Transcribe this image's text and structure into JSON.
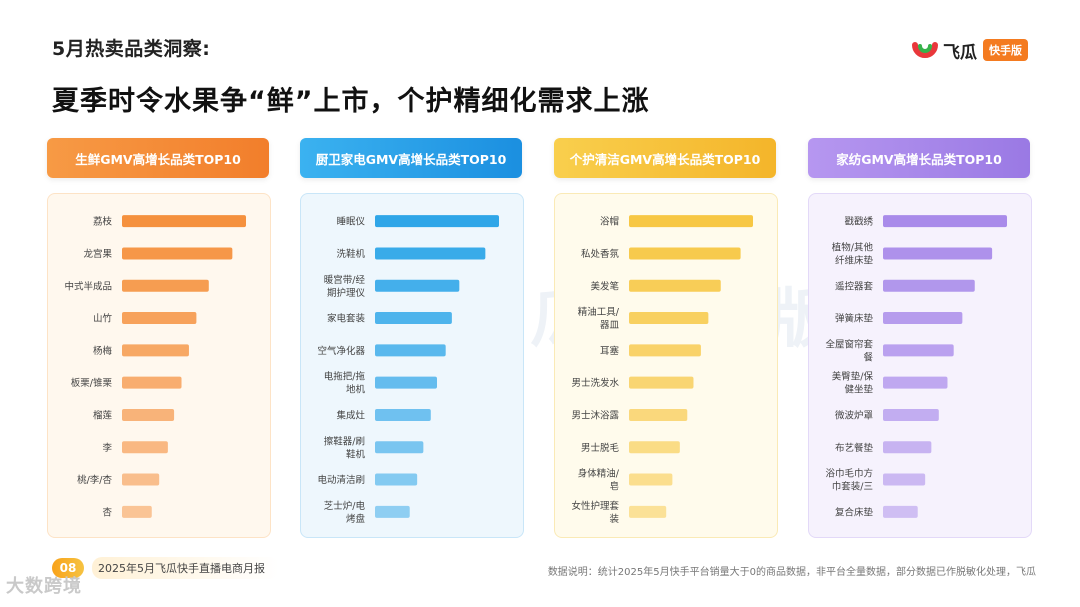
{
  "header": {
    "subtitle": "5月热卖品类洞察:",
    "title": "夏季时令水果争“鲜”上市，个护精细化需求上涨"
  },
  "brand": {
    "name": "飞瓜",
    "tag": "快手版",
    "accent": "#f47b20"
  },
  "watermark": "飞瓜 快手版",
  "footer": {
    "page_number": "08",
    "report_name": "2025年5月飞瓜快手直播电商月报",
    "note": "数据说明：统计2025年5月快手平台销量大于0的商品数据，非平台全量数据，部分数据已作脱敏化处理，飞瓜"
  },
  "corner_mark": "大数跨境",
  "chart_data": [
    {
      "type": "bar",
      "title": "生鲜GMV高增长品类TOP10",
      "color": "#f5913e",
      "header_gradient": [
        "#f79a45",
        "#f27e2b"
      ],
      "body_bg": "#fff8ee",
      "body_border": "#fde3c6",
      "categories": [
        "荔枝",
        "龙宫果",
        "中式半成品",
        "山竹",
        "杨梅",
        "板栗/锥栗",
        "榴莲",
        "李",
        "桃/李/杏",
        "杏"
      ],
      "values": [
        100,
        89,
        70,
        60,
        54,
        48,
        42,
        37,
        30,
        24
      ],
      "xlim": [
        0,
        100
      ]
    },
    {
      "type": "bar",
      "title": "厨卫家电GMV高增长品类TOP10",
      "color": "#2fa6e8",
      "header_gradient": [
        "#3bb2f0",
        "#1b8fe0"
      ],
      "body_bg": "#eef7fd",
      "body_border": "#c9e6f8",
      "categories": [
        "睡眠仪",
        "洗鞋机",
        "暖宫带/经期护理仪",
        "家电套装",
        "空气净化器",
        "电拖把/拖地机",
        "集成灶",
        "擦鞋器/刷鞋机",
        "电动清洁刷",
        "芝士炉/电烤盘"
      ],
      "values": [
        100,
        89,
        68,
        62,
        57,
        50,
        45,
        39,
        34,
        28
      ],
      "xlim": [
        0,
        100
      ]
    },
    {
      "type": "bar",
      "title": "个护清洁GMV高增长品类TOP10",
      "color": "#f7c744",
      "header_gradient": [
        "#f9cf4d",
        "#f4b52a"
      ],
      "body_bg": "#fffbec",
      "body_border": "#faeab6",
      "categories": [
        "浴帽",
        "私处香氛",
        "美发笔",
        "精油工具/器皿",
        "耳塞",
        "男士洗发水",
        "男士沐浴露",
        "男士脱毛",
        "身体精油/皂",
        "女性护理套装"
      ],
      "values": [
        100,
        90,
        74,
        64,
        58,
        52,
        47,
        41,
        35,
        30
      ],
      "xlim": [
        0,
        100
      ]
    },
    {
      "type": "bar",
      "title": "家纺GMV高增长品类TOP10",
      "color": "#a98bea",
      "header_gradient": [
        "#b697f0",
        "#9a79e4"
      ],
      "body_bg": "#f6f2fd",
      "body_border": "#e3d9f8",
      "categories": [
        "戳戳绣",
        "植物/其他纤维床垫",
        "遥控器套",
        "弹簧床垫",
        "全屋窗帘套餐",
        "美臀垫/保健坐垫",
        "微波炉罩",
        "布艺餐垫",
        "浴巾毛巾方巾套装/三件套",
        "复合床垫"
      ],
      "values": [
        100,
        88,
        74,
        64,
        57,
        52,
        45,
        39,
        34,
        28
      ],
      "xlim": [
        0,
        100
      ]
    }
  ]
}
